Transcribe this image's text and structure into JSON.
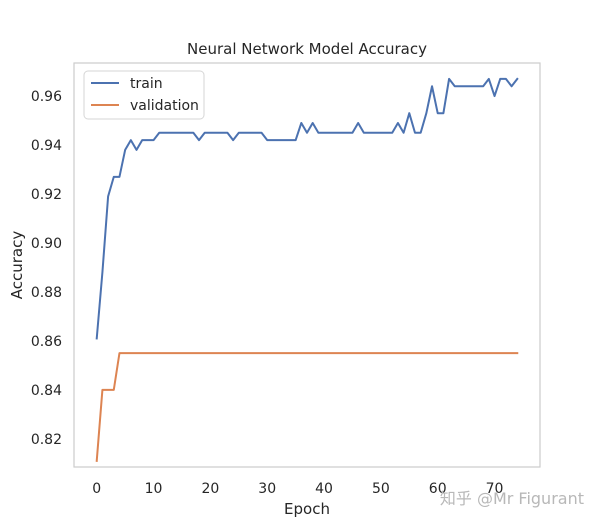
{
  "chart_data": {
    "type": "line",
    "title": "Neural Network Model Accuracy",
    "xlabel": "Epoch",
    "ylabel": "Accuracy",
    "xlim": [
      -4,
      78
    ],
    "ylim": [
      0.8085,
      0.9735
    ],
    "xticks": [
      0,
      10,
      20,
      30,
      40,
      50,
      60,
      70
    ],
    "yticks": [
      0.82,
      0.84,
      0.86,
      0.88,
      0.9,
      0.92,
      0.94,
      0.96
    ],
    "grid": false,
    "legend_position": "top-left",
    "series": [
      {
        "name": "train",
        "color": "#4c72b0",
        "x": [
          0,
          1,
          2,
          3,
          4,
          5,
          6,
          7,
          8,
          9,
          10,
          11,
          12,
          13,
          14,
          15,
          16,
          17,
          18,
          19,
          20,
          21,
          22,
          23,
          24,
          25,
          26,
          27,
          28,
          29,
          30,
          31,
          32,
          33,
          34,
          35,
          36,
          37,
          38,
          39,
          40,
          41,
          42,
          43,
          44,
          45,
          46,
          47,
          48,
          49,
          50,
          51,
          52,
          53,
          54,
          55,
          56,
          57,
          58,
          59,
          60,
          61,
          62,
          63,
          64,
          65,
          66,
          67,
          68,
          69,
          70,
          71,
          72,
          73,
          74
        ],
        "y": [
          0.861,
          0.888,
          0.919,
          0.927,
          0.927,
          0.938,
          0.942,
          0.938,
          0.942,
          0.942,
          0.942,
          0.945,
          0.945,
          0.945,
          0.945,
          0.945,
          0.945,
          0.945,
          0.942,
          0.945,
          0.945,
          0.945,
          0.945,
          0.945,
          0.942,
          0.945,
          0.945,
          0.945,
          0.945,
          0.945,
          0.942,
          0.942,
          0.942,
          0.942,
          0.942,
          0.942,
          0.949,
          0.945,
          0.949,
          0.945,
          0.945,
          0.945,
          0.945,
          0.945,
          0.945,
          0.945,
          0.949,
          0.945,
          0.945,
          0.945,
          0.945,
          0.945,
          0.945,
          0.949,
          0.945,
          0.953,
          0.945,
          0.945,
          0.953,
          0.964,
          0.953,
          0.953,
          0.967,
          0.964,
          0.964,
          0.964,
          0.964,
          0.964,
          0.964,
          0.967,
          0.96,
          0.967,
          0.967,
          0.964,
          0.967
        ]
      },
      {
        "name": "validation",
        "color": "#dd8452",
        "x": [
          0,
          1,
          2,
          3,
          4,
          5,
          10,
          20,
          30,
          40,
          50,
          60,
          70,
          74
        ],
        "y": [
          0.811,
          0.84,
          0.84,
          0.84,
          0.855,
          0.855,
          0.855,
          0.855,
          0.855,
          0.855,
          0.855,
          0.855,
          0.855,
          0.855
        ]
      }
    ]
  },
  "watermark": "知乎 @Mr Figurant",
  "colors": {
    "axes_edge": "#cccccc",
    "text": "#262626",
    "watermark": "#b8b8b8"
  }
}
